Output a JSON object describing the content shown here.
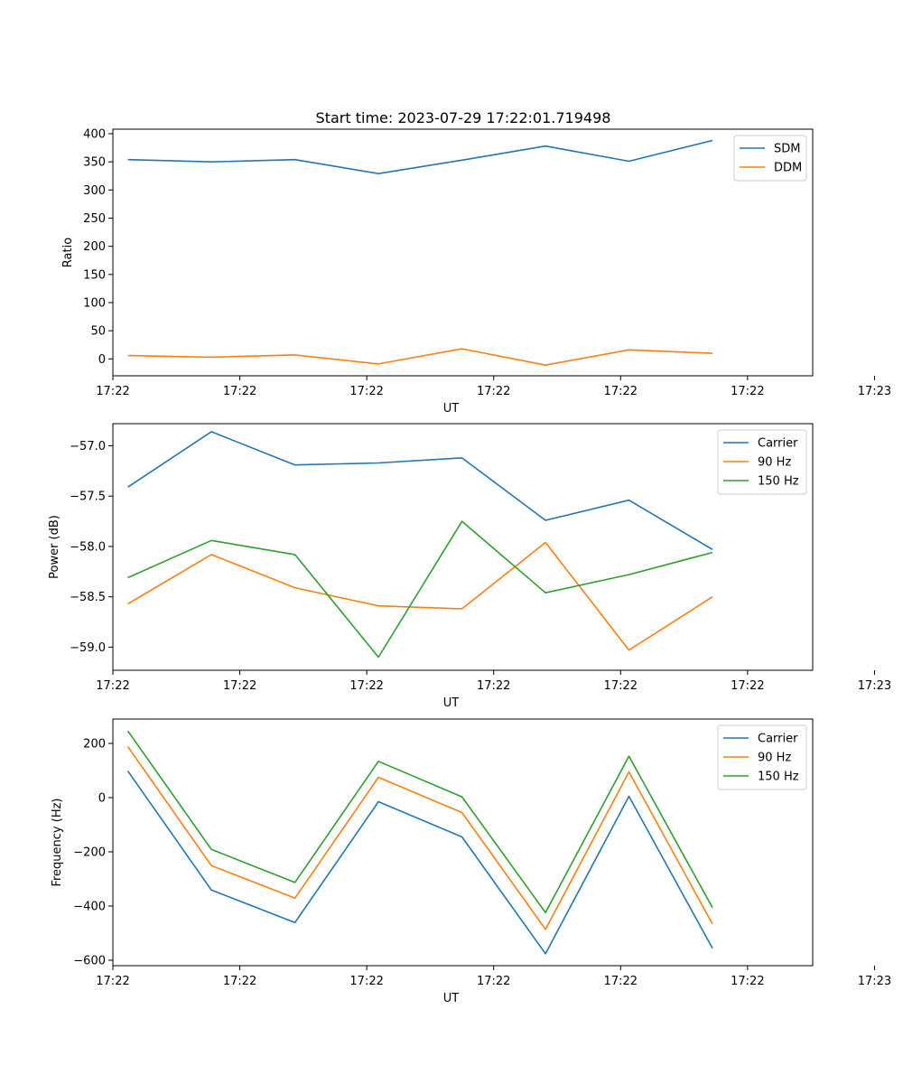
{
  "title": "Start time: 2023-07-29 17:22:01.719498",
  "colors": {
    "blue": "#1f77b4",
    "orange": "#ff7f0e",
    "green": "#2ca02c"
  },
  "chart_data": [
    {
      "type": "line",
      "title": "Start time: 2023-07-29 17:22:01.719498",
      "xlabel": "UT",
      "ylabel": "Ratio",
      "x": [
        1,
        2,
        3,
        4,
        5,
        6,
        7,
        8
      ],
      "xlim": [
        0.82,
        9.2
      ],
      "ylim": [
        -30,
        408
      ],
      "xticks": [
        {
          "v": 0.82,
          "label": "17:22"
        },
        {
          "v": 2.34,
          "label": "17:22"
        },
        {
          "v": 3.86,
          "label": "17:22"
        },
        {
          "v": 5.38,
          "label": "17:22"
        },
        {
          "v": 6.9,
          "label": "17:22"
        },
        {
          "v": 8.42,
          "label": "17:22"
        },
        {
          "v": 9.94,
          "label": "17:23"
        }
      ],
      "yticks": [
        {
          "v": 0,
          "label": "0"
        },
        {
          "v": 50,
          "label": "50"
        },
        {
          "v": 100,
          "label": "100"
        },
        {
          "v": 150,
          "label": "150"
        },
        {
          "v": 200,
          "label": "200"
        },
        {
          "v": 250,
          "label": "250"
        },
        {
          "v": 300,
          "label": "300"
        },
        {
          "v": 350,
          "label": "350"
        },
        {
          "v": 400,
          "label": "400"
        }
      ],
      "legend": "top-right",
      "series": [
        {
          "name": "SDM",
          "color": "#1f77b4",
          "values": [
            354,
            350,
            354,
            329,
            353,
            378,
            351,
            388
          ]
        },
        {
          "name": "DDM",
          "color": "#ff7f0e",
          "values": [
            6,
            3,
            7,
            -9,
            18,
            -11,
            16,
            10
          ]
        }
      ]
    },
    {
      "type": "line",
      "title": "",
      "xlabel": "UT",
      "ylabel": "Power (dB)",
      "x": [
        1,
        2,
        3,
        4,
        5,
        6,
        7,
        8
      ],
      "xlim": [
        0.82,
        9.2
      ],
      "ylim": [
        -59.23,
        -56.78
      ],
      "xticks": [
        {
          "v": 0.82,
          "label": "17:22"
        },
        {
          "v": 2.34,
          "label": "17:22"
        },
        {
          "v": 3.86,
          "label": "17:22"
        },
        {
          "v": 5.38,
          "label": "17:22"
        },
        {
          "v": 6.9,
          "label": "17:22"
        },
        {
          "v": 8.42,
          "label": "17:22"
        },
        {
          "v": 9.94,
          "label": "17:23"
        }
      ],
      "yticks": [
        {
          "v": -59.0,
          "label": "−59.0"
        },
        {
          "v": -58.5,
          "label": "−58.5"
        },
        {
          "v": -58.0,
          "label": "−58.0"
        },
        {
          "v": -57.5,
          "label": "−57.5"
        },
        {
          "v": -57.0,
          "label": "−57.0"
        }
      ],
      "legend": "top-right",
      "series": [
        {
          "name": "Carrier",
          "color": "#1f77b4",
          "values": [
            -57.41,
            -56.86,
            -57.19,
            -57.17,
            -57.12,
            -57.74,
            -57.54,
            -58.03
          ]
        },
        {
          "name": "90 Hz",
          "color": "#ff7f0e",
          "values": [
            -58.57,
            -58.08,
            -58.41,
            -58.59,
            -58.62,
            -57.96,
            -59.03,
            -58.5
          ]
        },
        {
          "name": "150 Hz",
          "color": "#2ca02c",
          "values": [
            -58.31,
            -57.94,
            -58.08,
            -59.1,
            -57.75,
            -58.46,
            -58.28,
            -58.06
          ]
        }
      ]
    },
    {
      "type": "line",
      "title": "",
      "xlabel": "UT",
      "ylabel": "Frequency (Hz)",
      "x": [
        1,
        2,
        3,
        4,
        5,
        6,
        7,
        8
      ],
      "xlim": [
        0.82,
        9.2
      ],
      "ylim": [
        -620,
        290
      ],
      "xticks": [
        {
          "v": 0.82,
          "label": "17:22"
        },
        {
          "v": 2.34,
          "label": "17:22"
        },
        {
          "v": 3.86,
          "label": "17:22"
        },
        {
          "v": 5.38,
          "label": "17:22"
        },
        {
          "v": 6.9,
          "label": "17:22"
        },
        {
          "v": 8.42,
          "label": "17:22"
        },
        {
          "v": 9.94,
          "label": "17:23"
        }
      ],
      "yticks": [
        {
          "v": -600,
          "label": "−600"
        },
        {
          "v": -400,
          "label": "−400"
        },
        {
          "v": -200,
          "label": "−200"
        },
        {
          "v": 0,
          "label": "0"
        },
        {
          "v": 200,
          "label": "200"
        }
      ],
      "legend": "top-right",
      "series": [
        {
          "name": "Carrier",
          "color": "#1f77b4",
          "values": [
            98,
            -341,
            -461,
            -15,
            -145,
            -576,
            5,
            -556
          ]
        },
        {
          "name": "90 Hz",
          "color": "#ff7f0e",
          "values": [
            188,
            -251,
            -371,
            75,
            -55,
            -486,
            95,
            -466
          ]
        },
        {
          "name": "150 Hz",
          "color": "#2ca02c",
          "values": [
            246,
            -191,
            -313,
            134,
            3,
            -424,
            153,
            -406
          ]
        }
      ]
    }
  ]
}
